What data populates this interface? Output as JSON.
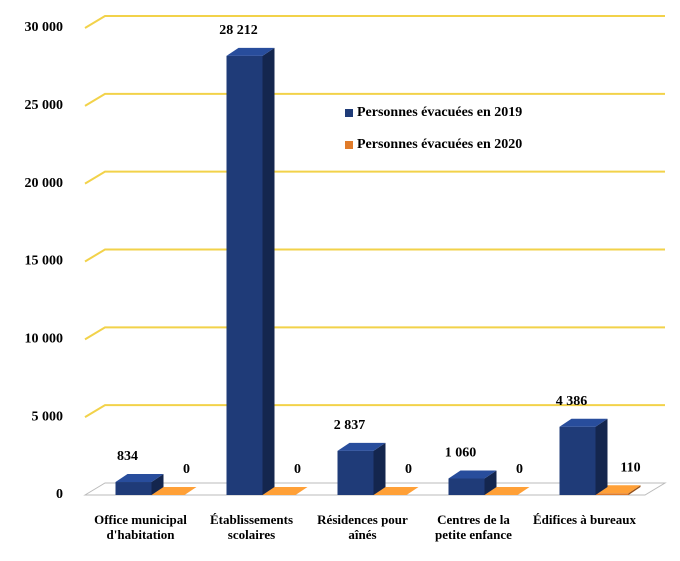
{
  "chart_data": {
    "type": "bar",
    "categories": [
      "Office municipal d'habitation",
      "Établissements scolaires",
      "Résidences pour aînés",
      "Centres de la petite enfance",
      "Édifices à bureaux"
    ],
    "series": [
      {
        "name": "Personnes évacuées en 2019",
        "color": "#1f3b78",
        "values": [
          834,
          28212,
          2837,
          1060,
          4386
        ],
        "value_labels": [
          "834",
          "28 212",
          "2 837",
          "1 060",
          "4 386"
        ]
      },
      {
        "name": "Personnes évacuées en 2020",
        "color": "#e07b2a",
        "values": [
          0,
          0,
          0,
          0,
          110
        ]
      }
    ],
    "ylim": [
      0,
      30000
    ],
    "yticks": [
      0,
      {
        "value": 5000,
        "label": "5 000"
      },
      {
        "value": 10000,
        "label": "10 000"
      },
      {
        "value": 15000,
        "label": "15 000"
      },
      {
        "value": 20000,
        "label": "20 000"
      },
      {
        "value": 25000,
        "label": "25 000"
      },
      {
        "value": 30000,
        "label": "30 000"
      }
    ],
    "grid": true,
    "grid_color": "#f2d24a"
  }
}
